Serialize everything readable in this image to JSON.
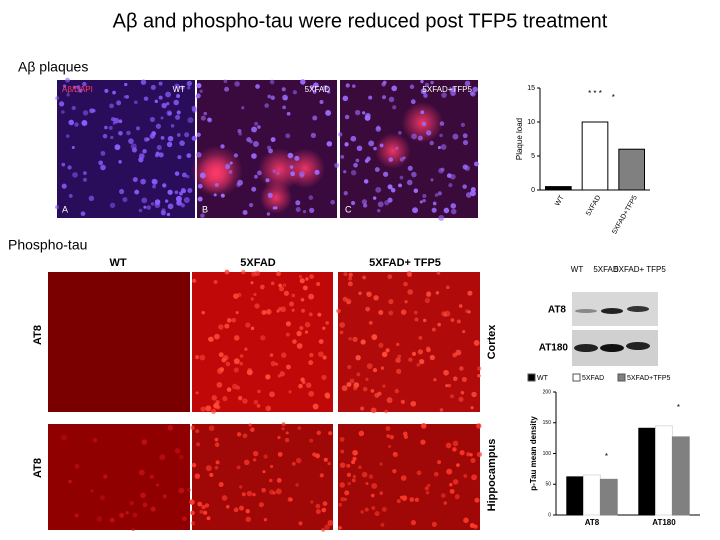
{
  "title": "Aβ and phospho-tau were reduced post TFP5 treatment",
  "abeta": {
    "label": "Aβ plaques",
    "stain": "Aβ/DAPI",
    "panels": [
      {
        "letter": "A",
        "label": "WT"
      },
      {
        "letter": "B",
        "label": "5XFAD"
      },
      {
        "letter": "C",
        "label": "5XFAD+TFP5"
      }
    ]
  },
  "ptau": {
    "label": "Phospho-tau",
    "columns": [
      "WT",
      "5XFAD",
      "5XFAD+ TFP5"
    ],
    "rows": [
      {
        "stain": "AT8",
        "region": "Cortex"
      },
      {
        "stain": "AT8",
        "region": "Hippocampus"
      }
    ],
    "blot": {
      "lanes": [
        "WT",
        "5XFAD",
        "5XFAD+ TFP5"
      ],
      "bands": [
        "AT8",
        "AT180"
      ]
    }
  },
  "chart_data": [
    {
      "type": "bar",
      "ylabel": "Plaque load",
      "categories": [
        "WT",
        "5XFAD",
        "5XFAD+TFP5"
      ],
      "values": [
        0.5,
        10,
        6
      ],
      "colors": [
        "#000000",
        "#ffffff",
        "#808080"
      ],
      "ylim": [
        0,
        15
      ],
      "yticks": [
        0,
        5,
        10,
        15
      ],
      "annotations": [
        "* * *",
        "*"
      ]
    },
    {
      "type": "grouped-bar",
      "ylabel": "p-Tau mean density",
      "categories": [
        "AT8",
        "AT180"
      ],
      "series": [
        {
          "name": "WT",
          "color": "#000000",
          "values": [
            62,
            141
          ]
        },
        {
          "name": "5XFAD",
          "color": "#ffffff",
          "values": [
            65,
            145
          ]
        },
        {
          "name": "5XFAD+TFP5",
          "color": "#808080",
          "values": [
            58,
            127
          ]
        }
      ],
      "ylim": [
        0,
        200
      ],
      "yticks": [
        0,
        50,
        100,
        150,
        200
      ],
      "annotations": [
        "*",
        "*"
      ]
    }
  ]
}
